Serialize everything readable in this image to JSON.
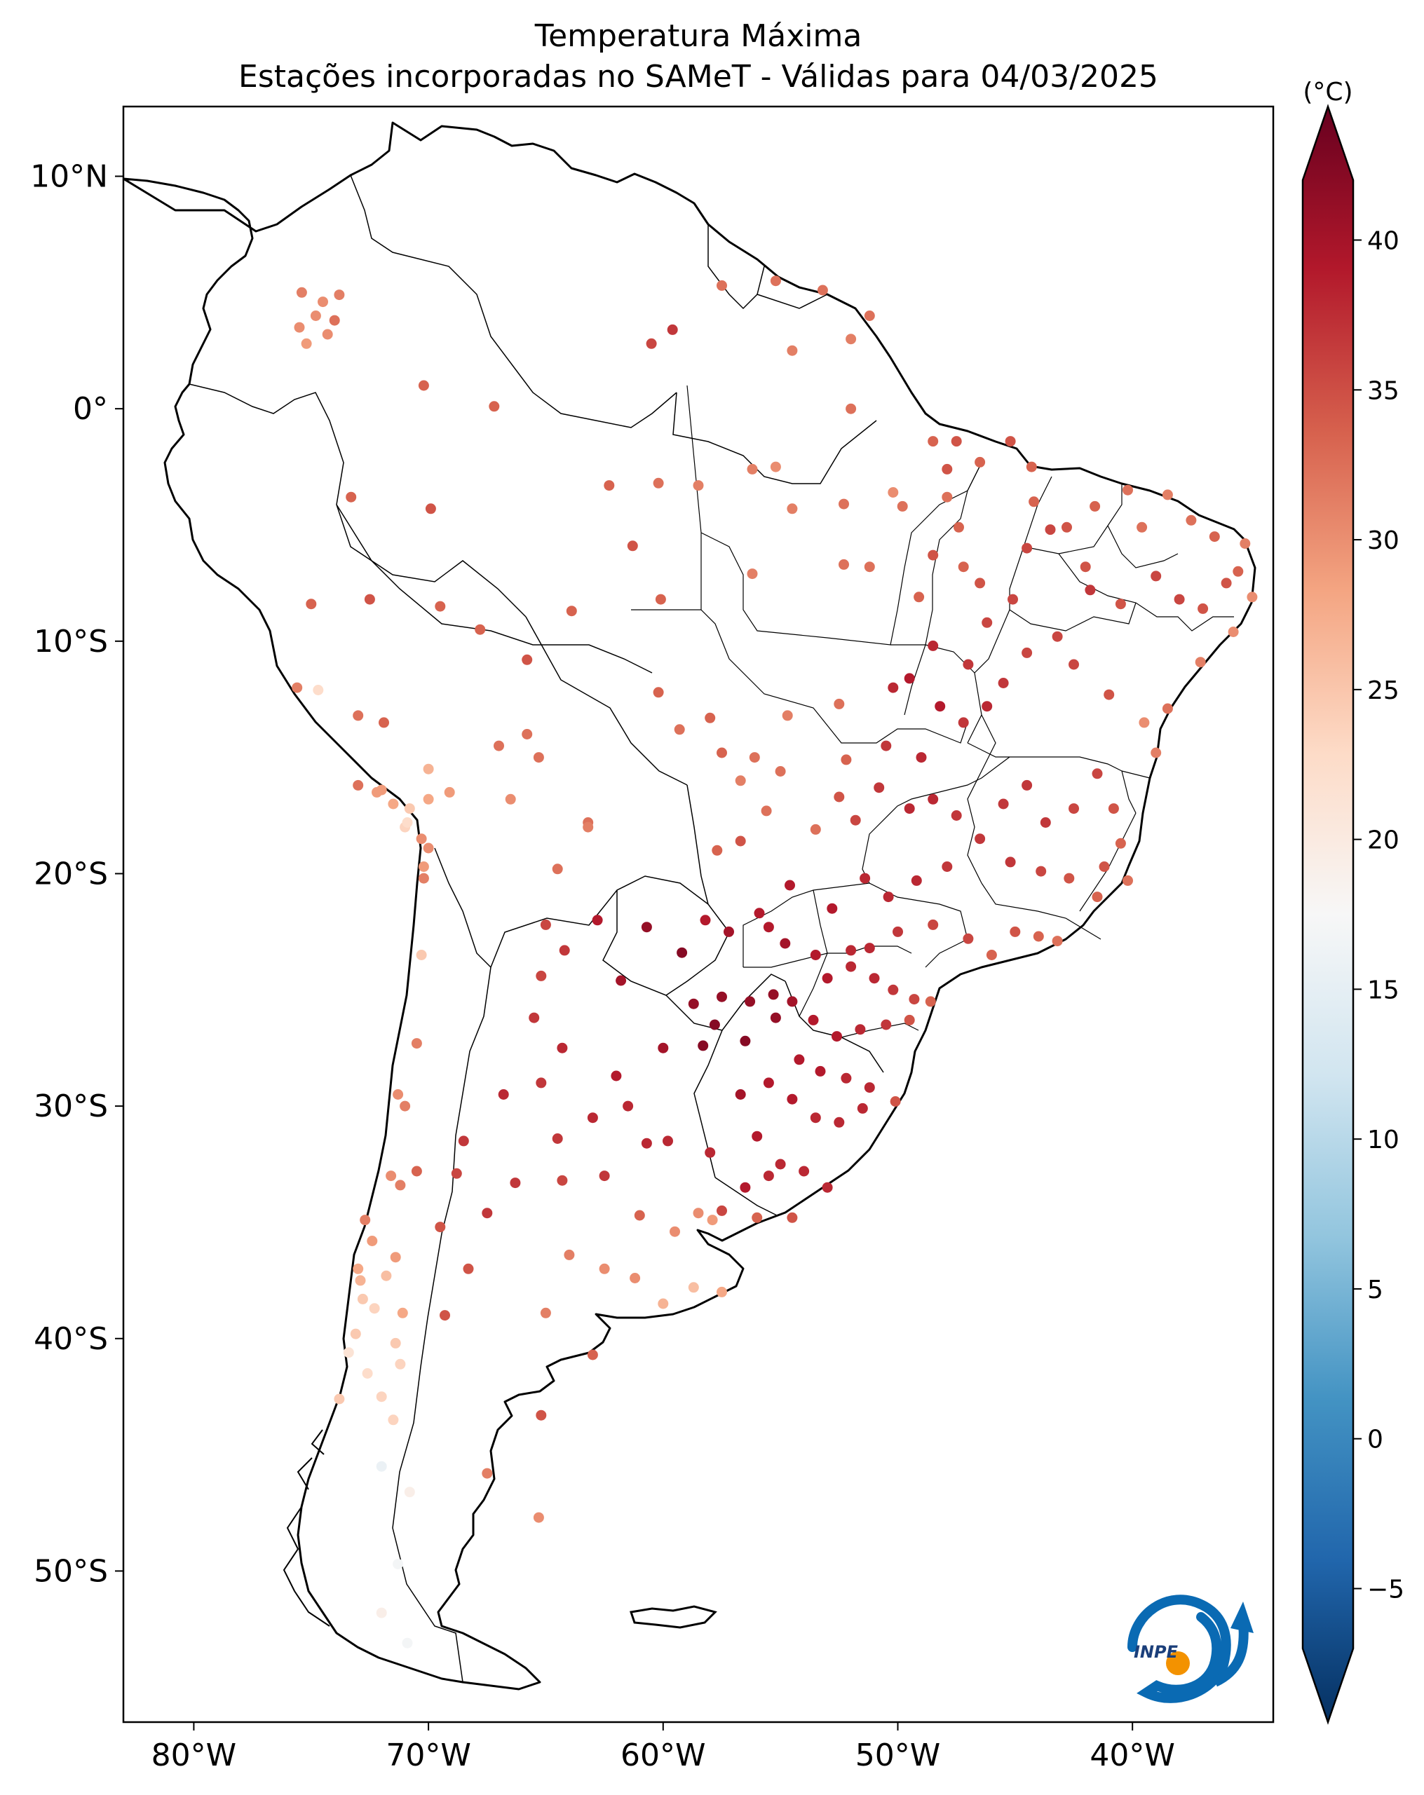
{
  "title": {
    "line1": "Temperatura Máxima",
    "line2": "Estações incorporadas no SAMeT - Válidas para 04/03/2025"
  },
  "map": {
    "lon_range": [
      -83,
      -34
    ],
    "lat_range": [
      -56.5,
      13
    ],
    "lon_ticks": [
      {
        "value": -80,
        "label": "80°W"
      },
      {
        "value": -70,
        "label": "70°W"
      },
      {
        "value": -60,
        "label": "60°W"
      },
      {
        "value": -50,
        "label": "50°W"
      },
      {
        "value": -40,
        "label": "40°W"
      }
    ],
    "lat_ticks": [
      {
        "value": 10,
        "label": "10°N"
      },
      {
        "value": 0,
        "label": "0°"
      },
      {
        "value": -10,
        "label": "10°S"
      },
      {
        "value": -20,
        "label": "20°S"
      },
      {
        "value": -30,
        "label": "30°S"
      },
      {
        "value": -40,
        "label": "40°S"
      },
      {
        "value": -50,
        "label": "50°S"
      }
    ]
  },
  "colorbar": {
    "unit": "(°C)",
    "min": -7,
    "max": 42,
    "ticks": [
      40,
      35,
      30,
      25,
      20,
      15,
      10,
      5,
      0,
      -5
    ],
    "tick_labels": [
      "40",
      "35",
      "30",
      "25",
      "20",
      "15",
      "10",
      "5",
      "0",
      "−5"
    ],
    "colors": [
      "#053061",
      "#2166ac",
      "#4393c3",
      "#92c5de",
      "#d1e5f0",
      "#f7f7f7",
      "#fddbc7",
      "#f4a582",
      "#d6604d",
      "#b2182b",
      "#67001f"
    ]
  },
  "logo": {
    "text": "INPE",
    "colors": [
      "#0a6ab3",
      "#f39200"
    ]
  },
  "stations": [
    [
      -75.4,
      5.0,
      30
    ],
    [
      -74.5,
      4.6,
      29
    ],
    [
      -73.8,
      4.9,
      30
    ],
    [
      -74.8,
      4.0,
      29
    ],
    [
      -75.5,
      3.5,
      29
    ],
    [
      -74,
      3.8,
      31
    ],
    [
      -75.2,
      2.8,
      28
    ],
    [
      -74.3,
      3.2,
      29
    ],
    [
      -70.2,
      1.0,
      32
    ],
    [
      -60.5,
      2.8,
      34
    ],
    [
      -59.6,
      3.4,
      35
    ],
    [
      -57.5,
      5.3,
      31
    ],
    [
      -55.2,
      5.5,
      31
    ],
    [
      -53.2,
      5.1,
      31
    ],
    [
      -54.5,
      2.5,
      30
    ],
    [
      -51.2,
      4.0,
      31
    ],
    [
      -52.0,
      3.0,
      30
    ],
    [
      -52.0,
      0.0,
      31
    ],
    [
      -67.2,
      0.1,
      32
    ],
    [
      -73.3,
      -3.8,
      32
    ],
    [
      -69.9,
      -4.3,
      33
    ],
    [
      -62.3,
      -3.3,
      32
    ],
    [
      -60.2,
      -3.2,
      31
    ],
    [
      -58.5,
      -3.3,
      30
    ],
    [
      -56.2,
      -2.6,
      30
    ],
    [
      -55.2,
      -2.5,
      29
    ],
    [
      -52.3,
      -4.1,
      31
    ],
    [
      -54.5,
      -4.3,
      30
    ],
    [
      -50.2,
      -3.6,
      29
    ],
    [
      -48.5,
      -1.4,
      32
    ],
    [
      -47.5,
      -1.4,
      33
    ],
    [
      -47.9,
      -2.6,
      33
    ],
    [
      -47.9,
      -3.8,
      31
    ],
    [
      -45.2,
      -1.4,
      33
    ],
    [
      -44.3,
      -2.5,
      32
    ],
    [
      -46.5,
      -2.3,
      32
    ],
    [
      -49.8,
      -4.2,
      31
    ],
    [
      -47.4,
      -5.1,
      32
    ],
    [
      -61.3,
      -5.9,
      33
    ],
    [
      -60.1,
      -8.2,
      32
    ],
    [
      -56.2,
      -7.1,
      30
    ],
    [
      -52.3,
      -6.7,
      31
    ],
    [
      -51.2,
      -6.8,
      31
    ],
    [
      -49.1,
      -8.1,
      32
    ],
    [
      -48.5,
      -6.3,
      33
    ],
    [
      -47.2,
      -6.8,
      32
    ],
    [
      -46.5,
      -7.5,
      33
    ],
    [
      -45.1,
      -8.2,
      34
    ],
    [
      -46.2,
      -9.2,
      34
    ],
    [
      -44.2,
      -4.0,
      32
    ],
    [
      -42.8,
      -5.1,
      33
    ],
    [
      -41.6,
      -4.2,
      32
    ],
    [
      -40.2,
      -3.5,
      31
    ],
    [
      -38.5,
      -3.7,
      30
    ],
    [
      -39.6,
      -5.1,
      31
    ],
    [
      -42.0,
      -6.8,
      33
    ],
    [
      -43.5,
      -5.2,
      34
    ],
    [
      -44.5,
      -6.0,
      34
    ],
    [
      -37.5,
      -4.8,
      31
    ],
    [
      -36.5,
      -5.5,
      32
    ],
    [
      -35.2,
      -5.8,
      30
    ],
    [
      -35.5,
      -7.0,
      32
    ],
    [
      -36.0,
      -7.5,
      33
    ],
    [
      -34.9,
      -8.1,
      29
    ],
    [
      -37.0,
      -8.6,
      33
    ],
    [
      -38.0,
      -8.2,
      34
    ],
    [
      -39.0,
      -7.2,
      34
    ],
    [
      -40.5,
      -8.4,
      33
    ],
    [
      -41.8,
      -7.8,
      35
    ],
    [
      -35.7,
      -9.6,
      29
    ],
    [
      -37.1,
      -10.9,
      30
    ],
    [
      -38.5,
      -12.9,
      31
    ],
    [
      -39.0,
      -14.8,
      30
    ],
    [
      -39.5,
      -13.5,
      29
    ],
    [
      -41.0,
      -12.3,
      33
    ],
    [
      -42.5,
      -11.0,
      34
    ],
    [
      -43.2,
      -9.8,
      34
    ],
    [
      -44.5,
      -10.5,
      34
    ],
    [
      -45.5,
      -11.8,
      35
    ],
    [
      -47.0,
      -11.0,
      35
    ],
    [
      -48.5,
      -10.2,
      36
    ],
    [
      -46.2,
      -12.8,
      36
    ],
    [
      -49.5,
      -11.6,
      37
    ],
    [
      -50.2,
      -12.0,
      36
    ],
    [
      -48.2,
      -12.8,
      37
    ],
    [
      -47.2,
      -13.5,
      35
    ],
    [
      -49.0,
      -15.0,
      36
    ],
    [
      -50.5,
      -14.5,
      35
    ],
    [
      -52.2,
      -15.1,
      32
    ],
    [
      -55.0,
      -15.6,
      31
    ],
    [
      -56.1,
      -15.0,
      31
    ],
    [
      -57.5,
      -14.8,
      32
    ],
    [
      -58.0,
      -13.3,
      32
    ],
    [
      -59.3,
      -13.8,
      31
    ],
    [
      -54.7,
      -13.2,
      30
    ],
    [
      -52.5,
      -12.7,
      31
    ],
    [
      -48.5,
      -16.8,
      36
    ],
    [
      -47.5,
      -17.5,
      35
    ],
    [
      -49.5,
      -17.2,
      36
    ],
    [
      -50.8,
      -16.3,
      35
    ],
    [
      -51.8,
      -17.7,
      34
    ],
    [
      -52.5,
      -16.7,
      33
    ],
    [
      -53.5,
      -18.1,
      31
    ],
    [
      -55.6,
      -17.3,
      31
    ],
    [
      -56.7,
      -16.0,
      30
    ],
    [
      -56.7,
      -18.6,
      33
    ],
    [
      -57.7,
      -19.0,
      32
    ],
    [
      -45.5,
      -17.0,
      35
    ],
    [
      -44.5,
      -16.2,
      35
    ],
    [
      -43.7,
      -17.8,
      35
    ],
    [
      -42.5,
      -17.2,
      34
    ],
    [
      -41.5,
      -15.7,
      34
    ],
    [
      -40.8,
      -17.2,
      33
    ],
    [
      -40.5,
      -18.7,
      32
    ],
    [
      -41.2,
      -19.7,
      33
    ],
    [
      -40.2,
      -20.3,
      31
    ],
    [
      -41.5,
      -21.0,
      32
    ],
    [
      -42.7,
      -20.2,
      33
    ],
    [
      -43.9,
      -19.9,
      34
    ],
    [
      -45.2,
      -19.5,
      35
    ],
    [
      -46.5,
      -18.5,
      35
    ],
    [
      -47.9,
      -19.7,
      35
    ],
    [
      -49.2,
      -20.3,
      36
    ],
    [
      -50.4,
      -21.0,
      36
    ],
    [
      -51.4,
      -20.2,
      36
    ],
    [
      -52.8,
      -21.5,
      37
    ],
    [
      -54.6,
      -20.5,
      37
    ],
    [
      -55.9,
      -21.7,
      37
    ],
    [
      -57.2,
      -22.5,
      38
    ],
    [
      -58.2,
      -22.0,
      37
    ],
    [
      -55.5,
      -22.3,
      37
    ],
    [
      -54.8,
      -23.0,
      38
    ],
    [
      -53.5,
      -23.5,
      37
    ],
    [
      -52.0,
      -23.3,
      36
    ],
    [
      -51.2,
      -23.2,
      36
    ],
    [
      -50.0,
      -22.5,
      35
    ],
    [
      -48.5,
      -22.2,
      34
    ],
    [
      -47.0,
      -22.8,
      34
    ],
    [
      -46.0,
      -23.5,
      32
    ],
    [
      -45.0,
      -22.5,
      33
    ],
    [
      -44.0,
      -22.7,
      32
    ],
    [
      -43.2,
      -22.9,
      31
    ],
    [
      -53.0,
      -24.5,
      37
    ],
    [
      -52.0,
      -24.0,
      36
    ],
    [
      -51.0,
      -24.5,
      36
    ],
    [
      -50.2,
      -25.0,
      35
    ],
    [
      -49.3,
      -25.4,
      34
    ],
    [
      -48.6,
      -25.5,
      32
    ],
    [
      -49.5,
      -26.3,
      33
    ],
    [
      -50.5,
      -26.5,
      35
    ],
    [
      -51.6,
      -26.7,
      36
    ],
    [
      -52.6,
      -27.0,
      37
    ],
    [
      -53.6,
      -26.3,
      37
    ],
    [
      -54.5,
      -25.5,
      38
    ],
    [
      -55.3,
      -25.2,
      39
    ],
    [
      -54.2,
      -28.0,
      37
    ],
    [
      -53.3,
      -28.5,
      37
    ],
    [
      -52.2,
      -28.8,
      36
    ],
    [
      -51.2,
      -29.2,
      36
    ],
    [
      -50.1,
      -29.8,
      33
    ],
    [
      -51.5,
      -30.1,
      36
    ],
    [
      -52.5,
      -30.7,
      36
    ],
    [
      -53.5,
      -30.5,
      36
    ],
    [
      -54.5,
      -29.7,
      37
    ],
    [
      -55.5,
      -29.0,
      37
    ],
    [
      -56.7,
      -29.5,
      38
    ],
    [
      -56.0,
      -31.3,
      37
    ],
    [
      -55.0,
      -32.5,
      36
    ],
    [
      -54.0,
      -32.8,
      36
    ],
    [
      -53.0,
      -33.5,
      36
    ],
    [
      -55.5,
      -33.0,
      36
    ],
    [
      -56.5,
      -33.5,
      37
    ],
    [
      -57.5,
      -34.5,
      34
    ],
    [
      -56.0,
      -34.8,
      32
    ],
    [
      -54.5,
      -34.8,
      33
    ],
    [
      -58.0,
      -32.0,
      36
    ],
    [
      -57.5,
      -25.3,
      39
    ],
    [
      -56.3,
      -25.5,
      39
    ],
    [
      -55.2,
      -26.2,
      39
    ],
    [
      -56.5,
      -27.2,
      40
    ],
    [
      -57.8,
      -26.5,
      40
    ],
    [
      -58.3,
      -27.4,
      40
    ],
    [
      -58.7,
      -25.6,
      39
    ],
    [
      -59.2,
      -23.4,
      40
    ],
    [
      -60.7,
      -22.3,
      39
    ],
    [
      -61.8,
      -24.6,
      38
    ],
    [
      -62.8,
      -22.0,
      37
    ],
    [
      -64.2,
      -23.3,
      35
    ],
    [
      -65.2,
      -24.4,
      34
    ],
    [
      -65.5,
      -26.2,
      35
    ],
    [
      -64.3,
      -27.5,
      36
    ],
    [
      -65.2,
      -29.0,
      35
    ],
    [
      -66.8,
      -29.5,
      36
    ],
    [
      -68.5,
      -31.5,
      35
    ],
    [
      -68.8,
      -32.9,
      34
    ],
    [
      -67.5,
      -34.6,
      35
    ],
    [
      -66.3,
      -33.3,
      35
    ],
    [
      -64.5,
      -31.4,
      35
    ],
    [
      -63.0,
      -30.5,
      36
    ],
    [
      -61.5,
      -30.0,
      36
    ],
    [
      -60.7,
      -31.6,
      36
    ],
    [
      -59.8,
      -31.5,
      36
    ],
    [
      -60.0,
      -27.5,
      38
    ],
    [
      -62.0,
      -28.7,
      37
    ],
    [
      -62.5,
      -33.0,
      35
    ],
    [
      -64.3,
      -33.2,
      34
    ],
    [
      -64.0,
      -36.4,
      30
    ],
    [
      -62.5,
      -37.0,
      29
    ],
    [
      -61.2,
      -37.4,
      29
    ],
    [
      -60.0,
      -38.5,
      26
    ],
    [
      -58.7,
      -37.8,
      25
    ],
    [
      -57.5,
      -38.0,
      27
    ],
    [
      -59.5,
      -35.4,
      29
    ],
    [
      -61.0,
      -34.7,
      32
    ],
    [
      -58.5,
      -34.6,
      29
    ],
    [
      -57.9,
      -34.9,
      28
    ],
    [
      -65.0,
      -38.9,
      30
    ],
    [
      -63.0,
      -40.7,
      32
    ],
    [
      -65.2,
      -43.3,
      33
    ],
    [
      -67.5,
      -45.8,
      30
    ],
    [
      -65.3,
      -47.7,
      29
    ],
    [
      -69.3,
      -39.0,
      33
    ],
    [
      -68.3,
      -37.0,
      33
    ],
    [
      -69.5,
      -35.2,
      33
    ],
    [
      -70.5,
      -32.8,
      32
    ],
    [
      -71.2,
      -33.4,
      30
    ],
    [
      -71.6,
      -33.0,
      29
    ],
    [
      -71.0,
      -30.0,
      30
    ],
    [
      -71.3,
      -29.5,
      29
    ],
    [
      -70.5,
      -27.3,
      30
    ],
    [
      -70.3,
      -23.5,
      24
    ],
    [
      -70.2,
      -20.2,
      30
    ],
    [
      -70.3,
      -18.5,
      29
    ],
    [
      -71.5,
      -17.0,
      27
    ],
    [
      -72.0,
      -16.4,
      28
    ],
    [
      -73.0,
      -16.2,
      31
    ],
    [
      -71.9,
      -13.5,
      32
    ],
    [
      -73.0,
      -13.2,
      31
    ],
    [
      -75.6,
      -12.0,
      30
    ],
    [
      -74.7,
      -12.1,
      22
    ],
    [
      -75.0,
      -8.4,
      32
    ],
    [
      -72.5,
      -8.2,
      33
    ],
    [
      -69.5,
      -8.5,
      32
    ],
    [
      -67.8,
      -9.5,
      32
    ],
    [
      -65.8,
      -10.8,
      33
    ],
    [
      -63.9,
      -8.7,
      32
    ],
    [
      -60.2,
      -12.2,
      32
    ],
    [
      -67.0,
      -14.5,
      31
    ],
    [
      -65.3,
      -15.0,
      31
    ],
    [
      -65.8,
      -14.0,
      31
    ],
    [
      -63.2,
      -17.8,
      31
    ],
    [
      -63.2,
      -18.0,
      30
    ],
    [
      -64.5,
      -19.8,
      31
    ],
    [
      -65.0,
      -22.2,
      34
    ],
    [
      -66.5,
      -16.8,
      29
    ],
    [
      -69.1,
      -16.5,
      28
    ],
    [
      -70.0,
      -15.5,
      26
    ],
    [
      -70.0,
      -16.8,
      27
    ],
    [
      -70.8,
      -17.2,
      24
    ],
    [
      -71.0,
      -18.0,
      23
    ],
    [
      -72.2,
      -16.5,
      28
    ],
    [
      -70.0,
      -18.9,
      29
    ],
    [
      -70.2,
      -19.7,
      28
    ],
    [
      -70.9,
      -17.8,
      22
    ],
    [
      -72.7,
      -34.9,
      30
    ],
    [
      -72.4,
      -35.8,
      28
    ],
    [
      -73.0,
      -37.0,
      27
    ],
    [
      -72.3,
      -38.7,
      23
    ],
    [
      -72.8,
      -38.3,
      24
    ],
    [
      -73.1,
      -39.8,
      24
    ],
    [
      -73.4,
      -40.6,
      21
    ],
    [
      -72.6,
      -41.5,
      22
    ],
    [
      -71.5,
      -43.5,
      23
    ],
    [
      -71.2,
      -41.1,
      23
    ],
    [
      -71.4,
      -40.2,
      24
    ],
    [
      -72.0,
      -42.5,
      23
    ],
    [
      -72.0,
      -45.5,
      16
    ],
    [
      -70.8,
      -46.6,
      19
    ],
    [
      -71.3,
      -49.7,
      17
    ],
    [
      -72.0,
      -51.8,
      19
    ],
    [
      -70.9,
      -53.1,
      17
    ],
    [
      -73.8,
      -42.6,
      24
    ],
    [
      -72.9,
      -37.5,
      26
    ],
    [
      -71.8,
      -37.3,
      25
    ],
    [
      -71.1,
      -38.9,
      27
    ],
    [
      -71.4,
      -36.5,
      28
    ]
  ]
}
